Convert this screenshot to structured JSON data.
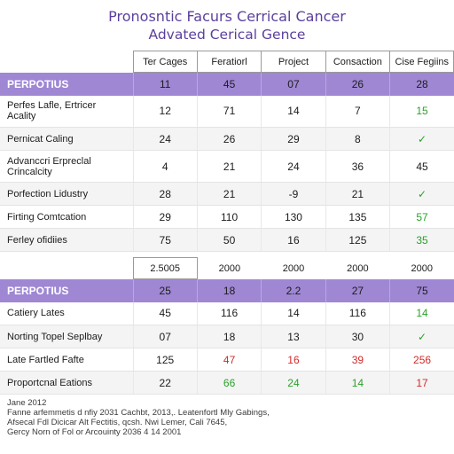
{
  "titles": {
    "line1": "Pronosntic Facurs Cerrical Cancer",
    "line2": "Advated Cerical Gence"
  },
  "table1": {
    "headers": [
      "",
      "Ter Cages",
      "Feratiorl",
      "Project",
      "Consaction",
      "Cise Fegiins"
    ],
    "band": {
      "label": "PERPOTIUS",
      "values": [
        "11",
        "45",
        "07",
        "26",
        "28"
      ]
    },
    "rows": [
      {
        "label": "Perfes Lafle, Ertricer\nAcality",
        "values": [
          "12",
          "71",
          "14",
          "7",
          "15"
        ],
        "tall": true
      },
      {
        "label": "Pernicat Caling",
        "values": [
          "24",
          "26",
          "29",
          "8",
          "✓"
        ]
      },
      {
        "label": "Advanccri Erpreclal\nCrincalcity",
        "values": [
          "4",
          "21",
          "24",
          "36",
          "45"
        ],
        "tall": true
      },
      {
        "label": "Porfection Lidustry",
        "values": [
          "28",
          "21",
          "-9",
          "21",
          "✓"
        ]
      },
      {
        "label": "Firting Comtcation",
        "values": [
          "29",
          "110",
          "130",
          "135",
          "57"
        ]
      },
      {
        "label": "Ferley ofidiies",
        "values": [
          "75",
          "50",
          "16",
          "125",
          "35"
        ]
      }
    ]
  },
  "table2": {
    "headers": [
      "",
      "2.5005",
      "2000",
      "2000",
      "2000",
      "2000"
    ],
    "band": {
      "label": "PERPOTIUS",
      "values": [
        "25",
        "18",
        "2.2",
        "27",
        "75"
      ]
    },
    "rows": [
      {
        "label": "Catiery Lates",
        "values": [
          "45",
          "116",
          "14",
          "116",
          "14"
        ]
      },
      {
        "label": "Norting Topel Seplbay",
        "values": [
          "07",
          "18",
          "13",
          "30",
          "✓"
        ]
      },
      {
        "label": "Late Fartled Fafte",
        "values": [
          "125",
          "47",
          "16",
          "39",
          "256"
        ]
      },
      {
        "label": "Proportcnal Eations",
        "values": [
          "22",
          "66",
          "24",
          "14",
          "17"
        ]
      }
    ]
  },
  "footer": {
    "lines": [
      "Jane 2012",
      "Fanne arfemmetis d nfiy 2031 Cachbt, 2013,. Leatenfortl Mly Gabings,",
      "Afsecal Fdl Dicicar Alt Fectitis, qcsh. Nwi Lemer, Cali 7645,",
      "Gercy Norn of Fol or Arcouinty 2036 4 14 2001"
    ]
  },
  "colors": {
    "title": "#5b3f9e",
    "band": "#9f87d4",
    "positive": "#2aa12a",
    "negative": "#d42a2a"
  }
}
